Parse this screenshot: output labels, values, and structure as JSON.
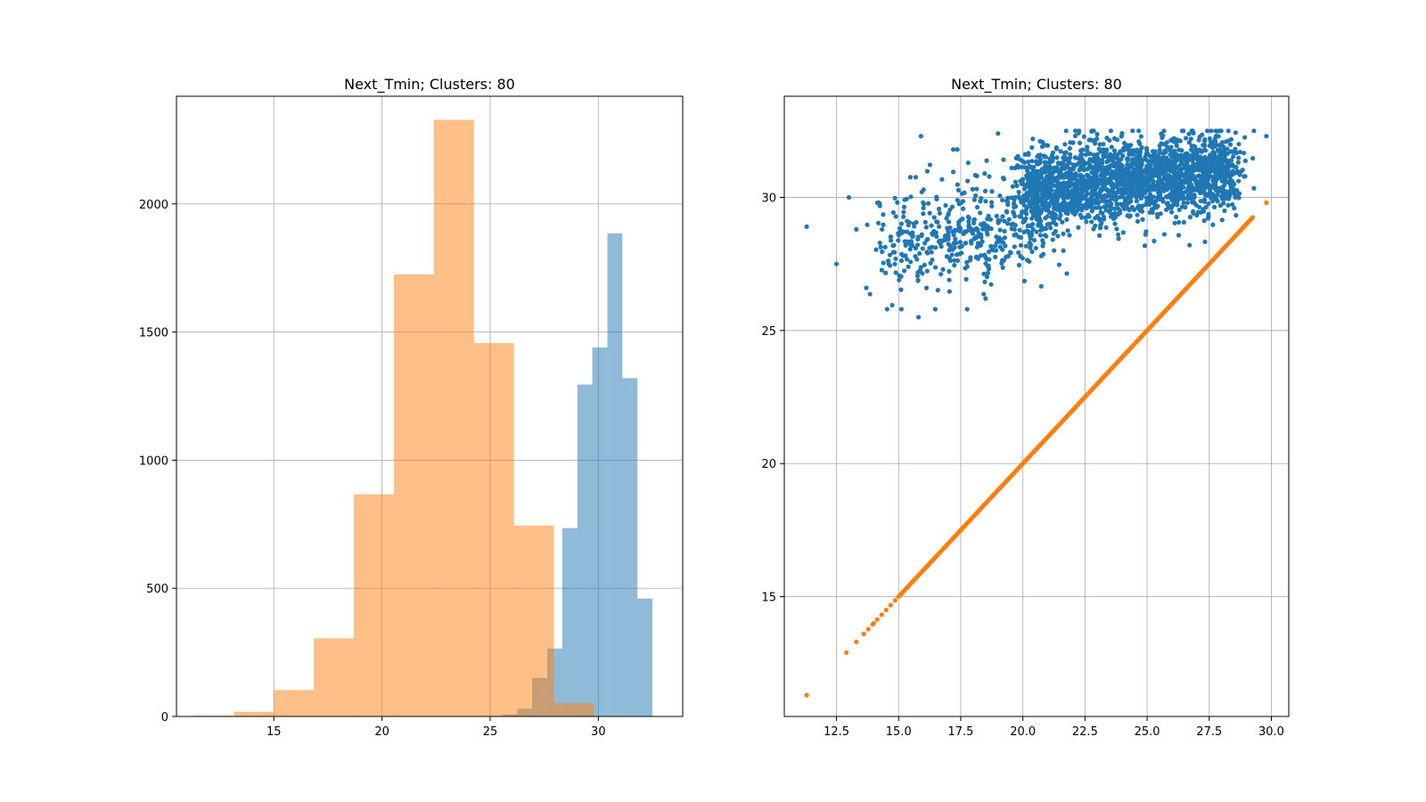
{
  "chart_data": [
    {
      "type": "bar",
      "title": "Next_Tmin; Clusters: 80",
      "xlabel": "",
      "ylabel": "",
      "xlim": [
        10.5,
        33.9
      ],
      "ylim": [
        0,
        2420
      ],
      "xticks": [
        15,
        20,
        25,
        30
      ],
      "yticks": [
        0,
        500,
        1000,
        1500,
        2000
      ],
      "grid": true,
      "series": [
        {
          "color": "#1f77b4",
          "opacity": 0.5,
          "bin_edges": [
            25.55,
            26.25,
            26.94,
            27.64,
            28.33,
            29.03,
            29.72,
            30.42,
            31.11,
            31.81,
            32.5
          ],
          "counts": [
            8,
            30,
            150,
            265,
            735,
            1295,
            1440,
            1885,
            1320,
            460
          ]
        },
        {
          "color": "#ff7f0e",
          "opacity": 0.5,
          "bin_edges": [
            11.3,
            13.15,
            15.0,
            16.85,
            18.7,
            20.55,
            22.4,
            24.25,
            26.1,
            27.95,
            29.8
          ],
          "counts": [
            3,
            18,
            103,
            305,
            867,
            1725,
            2328,
            1457,
            745,
            52
          ]
        }
      ]
    },
    {
      "type": "scatter",
      "title": "Next_Tmin; Clusters: 80",
      "xlabel": "",
      "ylabel": "",
      "xlim": [
        10.4,
        30.7
      ],
      "ylim": [
        10.5,
        33.8
      ],
      "xticks": [
        "12.5",
        "15.0",
        "17.5",
        "20.0",
        "22.5",
        "25.0",
        "27.5",
        "30.0"
      ],
      "yticks": [
        15,
        20,
        25,
        30
      ],
      "grid": true,
      "series": [
        {
          "color": "#1f77b4",
          "description": "predicted cluster temperature vs actual; dense cloud",
          "points": [
            [
              11.3,
              28.9
            ],
            [
              12.5,
              27.5
            ],
            [
              13.0,
              30.0
            ],
            [
              13.3,
              28.8
            ],
            [
              13.7,
              26.6
            ],
            [
              14.2,
              29.8
            ],
            [
              14.6,
              27.5
            ],
            [
              15.8,
              25.5
            ],
            [
              16.0,
              29.6
            ],
            [
              15.9,
              32.3
            ],
            [
              17.2,
              31.8
            ],
            [
              17.8,
              31.3
            ],
            [
              18.5,
              26.2
            ],
            [
              19.0,
              32.4
            ],
            [
              20.4,
              32.2
            ],
            [
              21.0,
              31.0
            ],
            [
              22.0,
              29.5
            ],
            [
              23.0,
              31.5
            ],
            [
              24.0,
              30.5
            ],
            [
              25.0,
              31.0
            ],
            [
              26.0,
              30.2
            ],
            [
              27.0,
              31.5
            ],
            [
              28.0,
              30.8
            ],
            [
              28.5,
              30.5
            ],
            [
              29.3,
              32.5
            ],
            [
              29.8,
              32.3
            ]
          ]
        },
        {
          "color": "#ff7f0e",
          "description": "identity line y = x",
          "points": [
            [
              11.3,
              11.3
            ],
            [
              12.9,
              12.9
            ],
            [
              13.3,
              13.3
            ],
            [
              14.0,
              14.0
            ],
            [
              15.0,
              15.0
            ],
            [
              17.5,
              17.5
            ],
            [
              20.0,
              20.0
            ],
            [
              22.5,
              22.5
            ],
            [
              25.0,
              25.0
            ],
            [
              27.5,
              27.5
            ],
            [
              29.8,
              29.8
            ]
          ]
        }
      ]
    }
  ]
}
